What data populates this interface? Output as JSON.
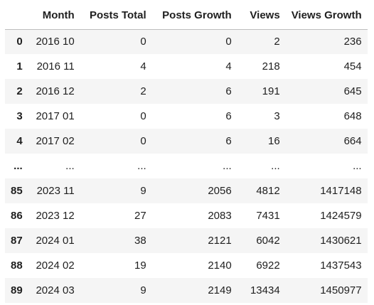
{
  "table": {
    "columns": [
      "",
      "Month",
      "Posts Total",
      "Posts Growth",
      "Views",
      "Views Growth"
    ],
    "rows": [
      {
        "index": "0",
        "cells": [
          "2016 10",
          "0",
          "0",
          "2",
          "236"
        ]
      },
      {
        "index": "1",
        "cells": [
          "2016 11",
          "4",
          "4",
          "218",
          "454"
        ]
      },
      {
        "index": "2",
        "cells": [
          "2016 12",
          "2",
          "6",
          "191",
          "645"
        ]
      },
      {
        "index": "3",
        "cells": [
          "2017 01",
          "0",
          "6",
          "3",
          "648"
        ]
      },
      {
        "index": "4",
        "cells": [
          "2017 02",
          "0",
          "6",
          "16",
          "664"
        ]
      },
      {
        "index": "...",
        "cells": [
          "...",
          "...",
          "...",
          "...",
          "..."
        ]
      },
      {
        "index": "85",
        "cells": [
          "2023 11",
          "9",
          "2056",
          "4812",
          "1417148"
        ]
      },
      {
        "index": "86",
        "cells": [
          "2023 12",
          "27",
          "2083",
          "7431",
          "1424579"
        ]
      },
      {
        "index": "87",
        "cells": [
          "2024 01",
          "38",
          "2121",
          "6042",
          "1430621"
        ]
      },
      {
        "index": "88",
        "cells": [
          "2024 02",
          "19",
          "2140",
          "6922",
          "1437543"
        ]
      },
      {
        "index": "89",
        "cells": [
          "2024 03",
          "9",
          "2149",
          "13434",
          "1450977"
        ]
      }
    ]
  },
  "colors": {
    "header_border": "#bdbdbd",
    "stripe": "#f5f5f5",
    "text": "#1f1f1f"
  }
}
